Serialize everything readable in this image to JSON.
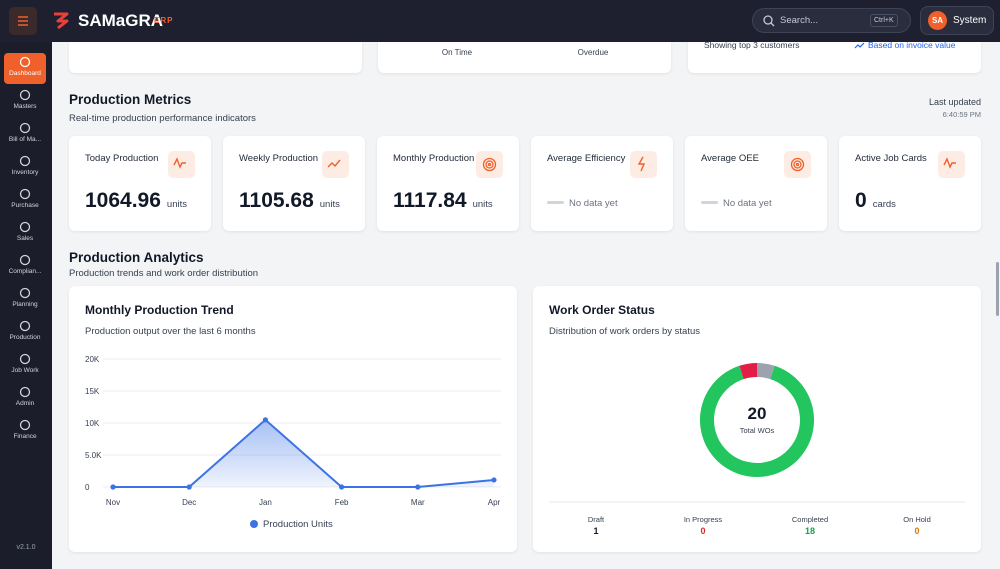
{
  "topbar": {
    "logo": "SAMaGRA",
    "logo_suffix": "ERP",
    "search_placeholder": "Search...",
    "shortcut": "Ctrl+K",
    "avatar": "SA",
    "user": "System"
  },
  "sidebar": {
    "items": [
      "Dashboard",
      "Masters",
      "Bill of Ma...",
      "Inventory",
      "Purchase",
      "Sales",
      "Complian...",
      "Planning",
      "Production",
      "Job Work",
      "Admin",
      "Finance"
    ],
    "version": "v2.1.0"
  },
  "top_cards": {
    "on_time": "On Time",
    "overdue": "Overdue",
    "customers_note": "Showing top 3 customers",
    "invoice_note": "Based on invoice value"
  },
  "metrics": {
    "title": "Production Metrics",
    "subtitle": "Real-time production performance indicators",
    "last_updated_label": "Last updated",
    "last_updated": "6:40:59 PM",
    "cards": [
      {
        "label": "Today Production",
        "value": 1064.96,
        "unit": "units"
      },
      {
        "label": "Weekly Production",
        "value": 1105.68,
        "unit": "units"
      },
      {
        "label": "Monthly Production",
        "value": 1117.84,
        "unit": "units"
      },
      {
        "label": "Average Efficiency",
        "empty": "No data yet"
      },
      {
        "label": "Average OEE",
        "empty": "No data yet"
      },
      {
        "label": "Active Job Cards",
        "value": 0,
        "unit": "cards"
      }
    ]
  },
  "analytics": {
    "title": "Production Analytics",
    "subtitle": "Production trends and work order distribution"
  },
  "chart_data": [
    {
      "type": "line",
      "title": "Monthly Production Trend",
      "subtitle": "Production output over the last 6 months",
      "categories": [
        "Nov",
        "Dec",
        "Jan",
        "Feb",
        "Mar",
        "Apr"
      ],
      "series": [
        {
          "name": "Production Units",
          "color": "#3b73e6",
          "values": [
            0,
            0,
            10500,
            0,
            0,
            1100
          ]
        }
      ],
      "ylim": [
        0,
        20000
      ],
      "yticks": [
        0,
        {
          "value": 5000,
          "label": "5.0K"
        },
        {
          "value": 10000,
          "label": "10K"
        },
        {
          "value": 15000,
          "label": "15K"
        },
        {
          "value": 20000,
          "label": "20K"
        }
      ],
      "grid": true
    },
    {
      "type": "donut",
      "title": "Work Order Status",
      "subtitle": "Distribution of work orders by status",
      "center_value": 20,
      "center_label": "Total WOs",
      "categories": [
        "Draft",
        "In Progress",
        "Completed",
        "On Hold",
        null
      ],
      "values": [
        1,
        0,
        18,
        0,
        1
      ],
      "colors": [
        "#9ca3af",
        "#ef4444",
        "#22c55e",
        "#f59e0b",
        "#e11d48"
      ],
      "label_colors": [
        "#111827",
        "#dc2626",
        "#16a34a",
        "#d97706",
        null
      ]
    }
  ]
}
